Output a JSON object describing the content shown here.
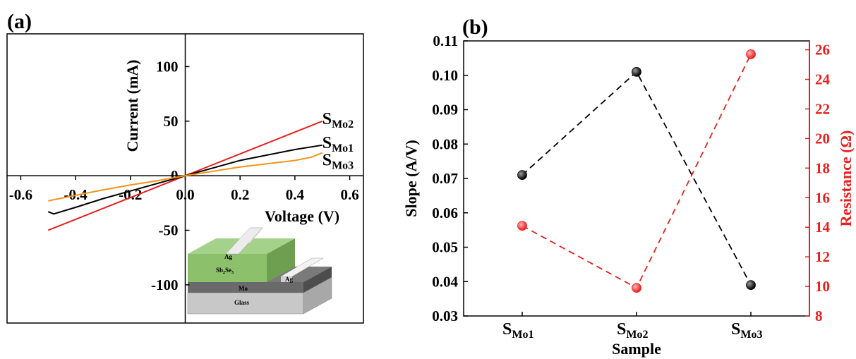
{
  "chart_data": [
    {
      "panel": "(a)",
      "type": "line",
      "xlabel": "Voltage (V)",
      "ylabel": "Current (mA)",
      "xlim": [
        -0.65,
        0.65
      ],
      "ylim": [
        -135,
        130
      ],
      "x_ticks": [
        -0.6,
        -0.4,
        -0.2,
        0.0,
        0.2,
        0.4,
        0.6
      ],
      "x_tick_labels": [
        "-0.6",
        "-0.4",
        "-0.2",
        "0.0",
        "0.2",
        "0.4",
        "0.6"
      ],
      "y_ticks": [
        -100,
        -50,
        0,
        50,
        100
      ],
      "y_tick_labels": [
        "-100",
        "-50",
        "0",
        "50",
        "100"
      ],
      "series": [
        {
          "name": "S",
          "sub": "Mo2",
          "color": "#e8201f",
          "x": [
            -0.5,
            -0.25,
            0.0,
            0.25,
            0.5
          ],
          "y": [
            -50,
            -25,
            0,
            25,
            50
          ]
        },
        {
          "name": "S",
          "sub": "Mo1",
          "color": "#000000",
          "x": [
            -0.5,
            -0.48,
            -0.4,
            -0.3,
            -0.2,
            -0.1,
            0.0,
            0.1,
            0.2,
            0.3,
            0.4,
            0.5
          ],
          "y": [
            -33,
            -35,
            -29,
            -21,
            -14,
            -7,
            0,
            7,
            14,
            19,
            24,
            28
          ]
        },
        {
          "name": "S",
          "sub": "Mo3",
          "color": "#f39419",
          "x": [
            -0.5,
            -0.4,
            -0.3,
            -0.2,
            -0.1,
            0.0,
            0.1,
            0.2,
            0.3,
            0.4,
            0.46,
            0.5
          ],
          "y": [
            -23,
            -18,
            -13,
            -8.5,
            -4.5,
            0,
            4,
            8,
            11,
            14,
            17,
            21
          ]
        }
      ],
      "inset": {
        "labels": {
          "ag_top": "Ag",
          "ag_side": "Ag",
          "absorber": "Sb",
          "absorber_sub1": "2",
          "absorber_mid": "Se",
          "absorber_sub2": "3",
          "mo": "Mo",
          "glass": "Glass"
        },
        "colors": {
          "absorber": "#8cc06a",
          "mo": "#6a6a6a",
          "glass": "#c8c8c8",
          "ag": "#e4e4e4"
        }
      }
    },
    {
      "panel": "(b)",
      "type": "scatter",
      "xlabel": "Sample",
      "ylabel": "Slope (A/V)",
      "y2label": "Resistance (Ω)",
      "categories": [
        {
          "main": "S",
          "sub": "Mo1"
        },
        {
          "main": "S",
          "sub": "Mo2"
        },
        {
          "main": "S",
          "sub": "Mo3"
        }
      ],
      "ylim": [
        0.03,
        0.11
      ],
      "y_ticks": [
        0.03,
        0.04,
        0.05,
        0.06,
        0.07,
        0.08,
        0.09,
        0.1,
        0.11
      ],
      "y_tick_labels": [
        "0.03",
        "0.04",
        "0.05",
        "0.06",
        "0.07",
        "0.08",
        "0.09",
        "0.10",
        "0.11"
      ],
      "y2lim": [
        8,
        26.6
      ],
      "y2_ticks": [
        8,
        10,
        12,
        14,
        16,
        18,
        20,
        22,
        24,
        26
      ],
      "y2_tick_labels": [
        "8",
        "10",
        "12",
        "14",
        "16",
        "18",
        "20",
        "22",
        "24",
        "26"
      ],
      "series": [
        {
          "axis": "left",
          "color": "#000000",
          "values": [
            0.071,
            0.101,
            0.039
          ]
        },
        {
          "axis": "right",
          "color": "#e8201f",
          "values": [
            14.1,
            9.9,
            25.7
          ]
        }
      ]
    }
  ]
}
